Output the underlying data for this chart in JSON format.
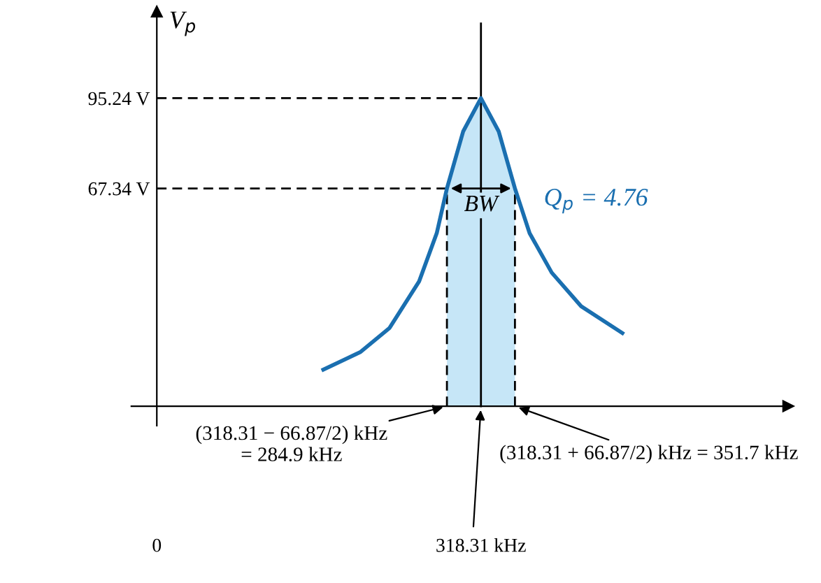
{
  "chart_data": {
    "type": "line",
    "ylabel": "V$_{p}$",
    "x": [
      163.5,
      199.7,
      228.6,
      257.6,
      274.9,
      284.9,
      300.9,
      318.31,
      335.7,
      351.7,
      366.1,
      387.8,
      416.7,
      457.2
    ],
    "series": [
      {
        "color": "#1a6fb0",
        "values": [
          11.3,
          16.7,
          24.2,
          38.6,
          53.5,
          67.34,
          85.0,
          95.24,
          85.0,
          67.34,
          53.5,
          41.3,
          30.9,
          22.6
        ]
      }
    ],
    "xlim": [
      -25,
      620
    ],
    "ylim": [
      -6,
      122
    ],
    "xticks": [
      {
        "value": 0,
        "label": "0"
      },
      {
        "value": 318.31,
        "label": "318.31 kHz"
      }
    ],
    "yticks": [
      {
        "value": 95.24,
        "label": "95.24 V"
      },
      {
        "value": 67.34,
        "label": "67.34 V"
      }
    ],
    "ref_lines": [
      {
        "axis": "y",
        "value": 95.24,
        "line_style": "dashed"
      },
      {
        "axis": "y",
        "value": 67.34,
        "line_style": "dashed"
      },
      {
        "axis": "x",
        "value": 284.9,
        "line_style": "dashed"
      },
      {
        "axis": "x",
        "value": 351.7,
        "line_style": "dashed"
      },
      {
        "axis": "x",
        "value": 318.31,
        "line_style": "solid"
      }
    ],
    "bands": [
      {
        "axis": "x",
        "from": 284.9,
        "to": 351.7,
        "label": "BW",
        "color": "#c6e6f7"
      }
    ],
    "annotations": [
      "Q$_{p}$ = 4.76",
      {
        "text": "(318.31 − 66.87/2) kHz\n= 284.9 kHz",
        "x": 284.9,
        "y": 0
      },
      {
        "text": "(318.31 + 66.87/2) kHz = 351.7 kHz",
        "x": 351.7,
        "y": 0
      }
    ],
    "grid": false,
    "legend": false
  }
}
